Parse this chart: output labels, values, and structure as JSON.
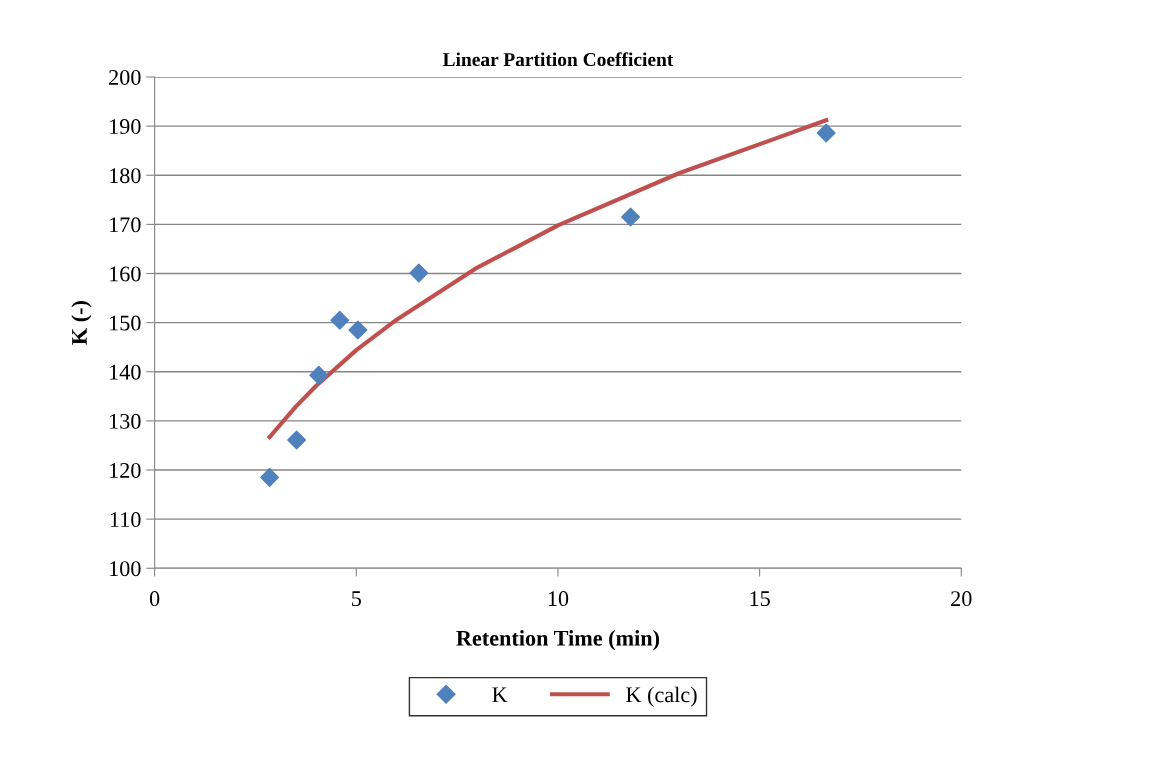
{
  "chart_data": {
    "type": "scatter",
    "title": "Linear Partition Coefficient",
    "xlabel": "Retention Time (min)",
    "ylabel": "K (-)",
    "xlim": [
      0,
      20
    ],
    "xticks": [
      0,
      5,
      10,
      15,
      20
    ],
    "ylim": [
      100,
      200
    ],
    "yticks": [
      100,
      110,
      120,
      130,
      140,
      150,
      160,
      170,
      180,
      190,
      200
    ],
    "grid": "y",
    "legend": "bottom",
    "series": [
      {
        "name": "K",
        "marker": "diamond",
        "color": "#4f81bd",
        "x": [
          2.85,
          3.52,
          4.07,
          4.59,
          5.04,
          6.55,
          11.8,
          16.65
        ],
        "values": [
          118.5,
          126.1,
          139.3,
          150.5,
          148.5,
          160.1,
          171.5,
          188.6
        ]
      },
      {
        "name": "K (calc)",
        "type": "line",
        "marker": "none",
        "color": "#c0504d",
        "x": [
          2.85,
          3.5,
          4,
          5,
          6,
          8,
          10,
          13,
          16.65
        ],
        "values": [
          126.7,
          132.9,
          137.1,
          144.4,
          150.6,
          161.2,
          169.8,
          180.4,
          191.2
        ]
      }
    ]
  }
}
